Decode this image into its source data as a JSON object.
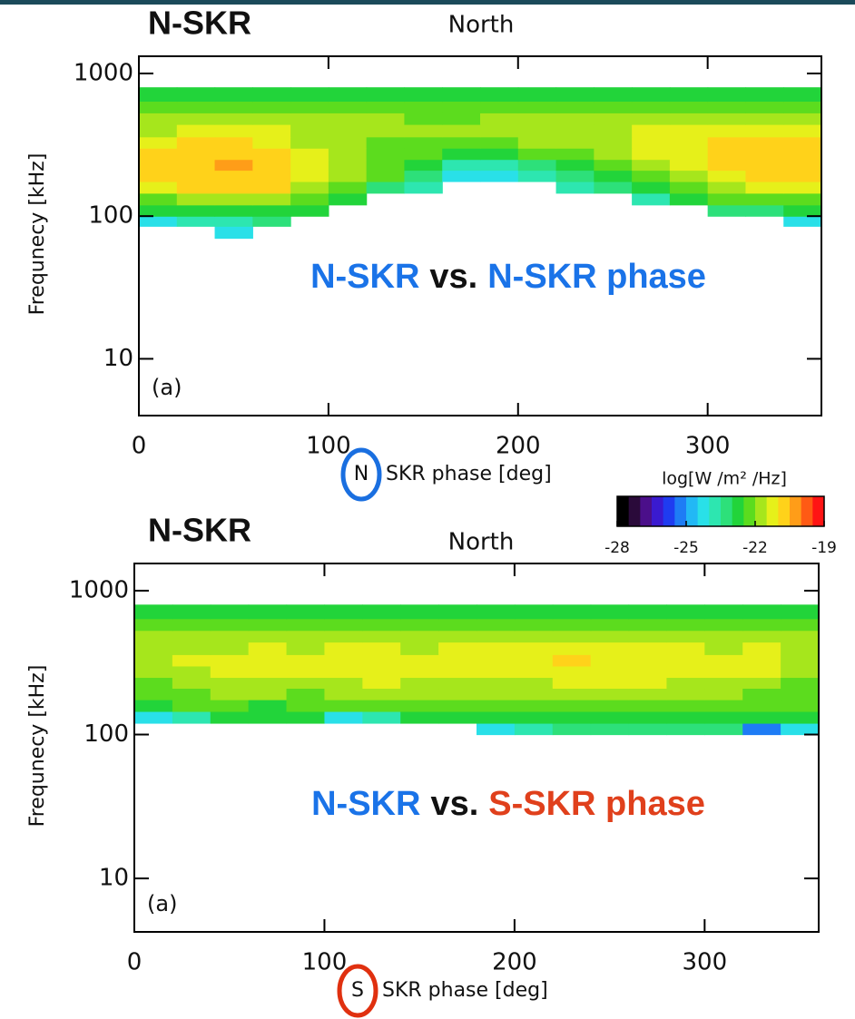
{
  "chart_data": [
    {
      "type": "heatmap",
      "label": "N-SKR",
      "label_color": "#1a6fe0",
      "title": "North",
      "panel_label": "(a)",
      "annotation": [
        {
          "text": "N-SKR",
          "color": "#1a73e8"
        },
        {
          "text": "vs.",
          "color": "#111111"
        },
        {
          "text": "N-SKR phase",
          "color": "#1a73e8"
        }
      ],
      "xlabel_marker": "N",
      "xlabel_marker_color": "#1a6fe0",
      "xlabel": "SKR phase [deg]",
      "ylabel": "Frequnecy [kHz]",
      "xlim": [
        0,
        360
      ],
      "xticks": [
        0,
        100,
        200,
        300
      ],
      "ylim": [
        4,
        1320
      ],
      "yticks": [
        10,
        100,
        1000
      ],
      "log_y": true,
      "grid": false,
      "x_bins": [
        0,
        20,
        40,
        60,
        80,
        100,
        120,
        140,
        160,
        180,
        200,
        220,
        240,
        260,
        280,
        300,
        320,
        340,
        360
      ],
      "y_bins": [
        70,
        85,
        100,
        120,
        145,
        175,
        210,
        250,
        300,
        360,
        440,
        530,
        640,
        800
      ],
      "clim": [
        -28,
        -19
      ],
      "colormap": [
        "#000000",
        "#2a0a3a",
        "#4b0f8a",
        "#3a1ad0",
        "#1f3cf0",
        "#1e7cf5",
        "#22b8f5",
        "#29e0e8",
        "#2de6b0",
        "#2de07a",
        "#22d43a",
        "#5cdc1e",
        "#a6e61c",
        "#e6f01a",
        "#ffd21a",
        "#ff9d18",
        "#ff5a14",
        "#ff1414"
      ],
      "colorbar": {
        "label": "log[W /m² /Hz]",
        "ticks": [
          -28,
          -25,
          -22,
          -19
        ]
      },
      "z": [
        [
          null,
          null,
          -24.5,
          null,
          null,
          null,
          null,
          null,
          null,
          null,
          null,
          null,
          null,
          null,
          null,
          null,
          null,
          null
        ],
        [
          -24.5,
          -24,
          -24,
          -23.5,
          null,
          null,
          null,
          null,
          null,
          null,
          null,
          null,
          null,
          null,
          null,
          null,
          null,
          -24.5
        ],
        [
          -23,
          -23,
          -23,
          -23,
          -23,
          null,
          null,
          null,
          null,
          null,
          null,
          null,
          null,
          null,
          null,
          -23.5,
          -23.5,
          -23
        ],
        [
          -22.5,
          -22,
          -22,
          -22,
          -22.5,
          -23,
          null,
          null,
          null,
          null,
          null,
          null,
          null,
          -24,
          -23,
          -22.5,
          -22.5,
          -22.5
        ],
        [
          -21.5,
          -21,
          -21,
          -21,
          -22,
          -22.5,
          -23.5,
          -24,
          null,
          null,
          null,
          -24,
          -23.5,
          -23,
          -22.5,
          -22,
          -21.5,
          -21.5
        ],
        [
          -21,
          -20.8,
          -20.7,
          -21,
          -21.5,
          -22,
          -22.5,
          -23.5,
          -24.5,
          -24.5,
          -24,
          -23.5,
          -23,
          -22.5,
          -22,
          -21.5,
          -21,
          -21
        ],
        [
          -21,
          -20.8,
          -20.4,
          -20.8,
          -21.5,
          -22,
          -22.5,
          -23,
          -24,
          -24,
          -23.5,
          -23,
          -22.5,
          -22,
          -21.5,
          -21,
          -20.8,
          -21
        ],
        [
          -21,
          -20.9,
          -20.8,
          -20.9,
          -21.5,
          -22,
          -22.5,
          -22.5,
          -23,
          -23,
          -22.5,
          -22.5,
          -22,
          -21.5,
          -21.5,
          -21,
          -20.9,
          -21
        ],
        [
          -21.5,
          -21,
          -21,
          -21.5,
          -22,
          -22,
          -22.5,
          -22.5,
          -22.5,
          -22.5,
          -22,
          -22,
          -22,
          -21.5,
          -21.5,
          -21,
          -21,
          -21
        ],
        [
          -22,
          -21.5,
          -21.5,
          -21.5,
          -22,
          -22,
          -22,
          -22,
          -22,
          -22,
          -22,
          -22,
          -22,
          -21.5,
          -21.5,
          -21.5,
          -21.5,
          -21.5
        ],
        [
          -22,
          -22,
          -22,
          -22,
          -22,
          -22,
          -22,
          -22.5,
          -22.5,
          -22,
          -22,
          -22,
          -22,
          -22,
          -22,
          -22,
          -22,
          -22
        ],
        [
          -22.5,
          -22.5,
          -22.5,
          -22.5,
          -22.5,
          -22.5,
          -22.5,
          -22.5,
          -22.5,
          -22.5,
          -22.5,
          -22.5,
          -22.5,
          -22.5,
          -22.5,
          -22.5,
          -22.5,
          -22.5
        ],
        [
          -23,
          -23,
          -23,
          -23,
          -23,
          -23,
          -23,
          -23,
          -23,
          -23,
          -23,
          -23,
          -23,
          -23,
          -23,
          -23,
          -23,
          -23
        ]
      ]
    },
    {
      "type": "heatmap",
      "label": "N-SKR",
      "label_color": "#1a6fe0",
      "title": "North",
      "panel_label": "(a)",
      "annotation": [
        {
          "text": "N-SKR",
          "color": "#1a73e8"
        },
        {
          "text": "vs.",
          "color": "#111111"
        },
        {
          "text": "S-SKR phase",
          "color": "#e0401c"
        }
      ],
      "xlabel_marker": "S",
      "xlabel_marker_color": "#e0300f",
      "xlabel": "SKR phase [deg]",
      "ylabel": "Frequnecy [kHz]",
      "xlim": [
        0,
        360
      ],
      "xticks": [
        0,
        100,
        200,
        300
      ],
      "ylim": [
        4.25,
        1545
      ],
      "yticks": [
        10,
        100,
        1000
      ],
      "log_y": true,
      "grid": false,
      "x_bins": [
        0,
        20,
        40,
        60,
        80,
        100,
        120,
        140,
        160,
        180,
        200,
        220,
        240,
        260,
        280,
        300,
        320,
        340,
        360
      ],
      "y_bins": [
        70,
        85,
        100,
        120,
        145,
        175,
        210,
        250,
        300,
        360,
        440,
        530,
        640,
        800
      ],
      "clim": [
        -28,
        -19
      ],
      "colormap": [
        "#000000",
        "#2a0a3a",
        "#4b0f8a",
        "#3a1ad0",
        "#1f3cf0",
        "#1e7cf5",
        "#22b8f5",
        "#29e0e8",
        "#2de6b0",
        "#2de07a",
        "#22d43a",
        "#5cdc1e",
        "#a6e61c",
        "#e6f01a",
        "#ffd21a",
        "#ff9d18",
        "#ff5a14",
        "#ff1414"
      ],
      "z": [
        [
          null,
          null,
          null,
          null,
          null,
          null,
          null,
          null,
          null,
          null,
          null,
          null,
          null,
          null,
          null,
          null,
          null,
          null
        ],
        [
          null,
          null,
          null,
          null,
          null,
          null,
          null,
          null,
          null,
          null,
          null,
          null,
          null,
          null,
          null,
          null,
          null,
          null
        ],
        [
          null,
          null,
          null,
          null,
          null,
          null,
          null,
          null,
          null,
          -24.5,
          -24,
          -23.5,
          -23.5,
          -23.5,
          -23.5,
          -23.5,
          -25.5,
          -24.5
        ],
        [
          -24.5,
          -24,
          -23,
          -23,
          -23,
          -24.5,
          -24,
          -23,
          -23,
          -23,
          -23,
          -23,
          -23,
          -23,
          -23,
          -23,
          -23,
          -23
        ],
        [
          -23,
          -22.5,
          -22.5,
          -23,
          -22.5,
          -22.5,
          -22.5,
          -22.5,
          -22.5,
          -22.5,
          -22.5,
          -22.5,
          -22.5,
          -22.5,
          -22.5,
          -22.5,
          -22.5,
          -22.5
        ],
        [
          -22.5,
          -22.5,
          -22,
          -22,
          -22.5,
          -22,
          -22,
          -22,
          -22,
          -22,
          -22,
          -22,
          -22,
          -22,
          -22,
          -22,
          -22.5,
          -22.5
        ],
        [
          -22.5,
          -22,
          -22,
          -22,
          -22,
          -22,
          -21.5,
          -22,
          -22,
          -22,
          -22,
          -21.5,
          -21.5,
          -21.5,
          -22,
          -22,
          -22,
          -22.5
        ],
        [
          -22,
          -22,
          -21.5,
          -21.5,
          -21.5,
          -21.5,
          -21.5,
          -21.5,
          -21.5,
          -21.5,
          -21.5,
          -21.5,
          -21.5,
          -21.5,
          -21.5,
          -21.5,
          -21.5,
          -22
        ],
        [
          -22,
          -21.5,
          -21.5,
          -21.5,
          -21.5,
          -21.5,
          -21.5,
          -21.5,
          -21.5,
          -21.5,
          -21.5,
          -21,
          -21.5,
          -21.5,
          -21.5,
          -21.5,
          -21.5,
          -22
        ],
        [
          -22,
          -22,
          -22,
          -21.5,
          -22,
          -21.5,
          -21.5,
          -22,
          -21.5,
          -21.5,
          -21.5,
          -21.5,
          -21.5,
          -21.5,
          -21.5,
          -22,
          -21.5,
          -22
        ],
        [
          -22,
          -22,
          -22,
          -22,
          -22,
          -22,
          -22,
          -22,
          -22,
          -22,
          -22,
          -22,
          -22,
          -22,
          -22,
          -22,
          -22,
          -22
        ],
        [
          -22.5,
          -22.5,
          -22.5,
          -22.5,
          -22.5,
          -22.5,
          -22.5,
          -22.5,
          -22.5,
          -22.5,
          -22.5,
          -22.5,
          -22.5,
          -22.5,
          -22.5,
          -22.5,
          -22.5,
          -22.5
        ],
        [
          -23,
          -23,
          -23,
          -23,
          -23,
          -23,
          -23,
          -23,
          -23,
          -23,
          -23,
          -23,
          -23,
          -23,
          -23,
          -23,
          -23,
          -23
        ]
      ]
    }
  ]
}
